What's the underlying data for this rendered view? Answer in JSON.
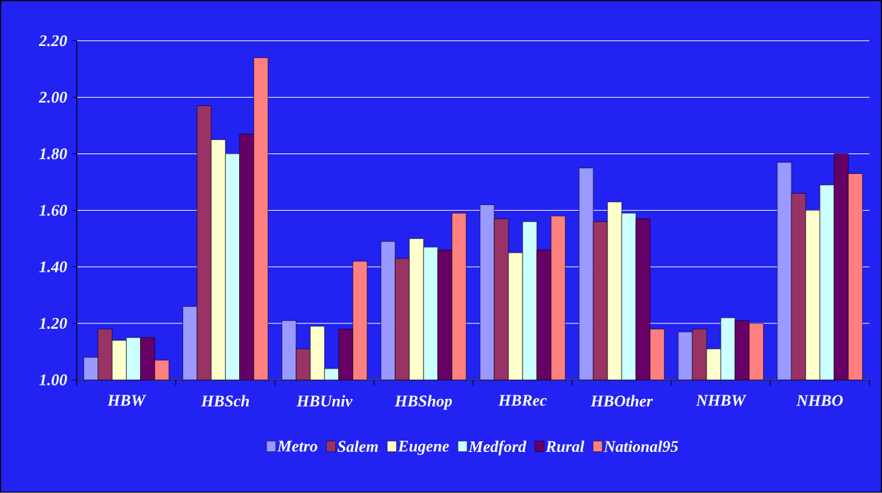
{
  "chart_data": {
    "type": "bar",
    "categories": [
      "HBW",
      "HBSch",
      "HBUniv",
      "HBShop",
      "HBRec",
      "HBOther",
      "NHBW",
      "NHBO"
    ],
    "series": [
      {
        "name": "Metro",
        "color": "#9999ff",
        "values": [
          1.08,
          1.26,
          1.21,
          1.49,
          1.62,
          1.75,
          1.17,
          1.77
        ]
      },
      {
        "name": "Salem",
        "color": "#993366",
        "values": [
          1.18,
          1.97,
          1.11,
          1.43,
          1.57,
          1.56,
          1.18,
          1.66
        ]
      },
      {
        "name": "Eugene",
        "color": "#ffffcc",
        "values": [
          1.14,
          1.85,
          1.19,
          1.5,
          1.45,
          1.63,
          1.11,
          1.6
        ]
      },
      {
        "name": "Medford",
        "color": "#ccffff",
        "values": [
          1.15,
          1.8,
          1.04,
          1.47,
          1.56,
          1.59,
          1.22,
          1.69
        ]
      },
      {
        "name": "Rural",
        "color": "#660066",
        "values": [
          1.15,
          1.87,
          1.18,
          1.46,
          1.46,
          1.57,
          1.21,
          1.8
        ]
      },
      {
        "name": "National95",
        "color": "#ff8080",
        "values": [
          1.07,
          2.14,
          1.42,
          1.59,
          1.58,
          1.18,
          1.2,
          1.73
        ]
      }
    ],
    "ylim": [
      1.0,
      2.2
    ],
    "yticks": [
      {
        "value": 1.0,
        "label": "1.00"
      },
      {
        "value": 1.2,
        "label": "1.20"
      },
      {
        "value": 1.4,
        "label": "1.40"
      },
      {
        "value": 1.6,
        "label": "1.60"
      },
      {
        "value": 1.8,
        "label": "1.80"
      },
      {
        "value": 2.0,
        "label": "2.00"
      },
      {
        "value": 2.2,
        "label": "2.20"
      }
    ],
    "grid": "y",
    "legend": "bottom"
  }
}
